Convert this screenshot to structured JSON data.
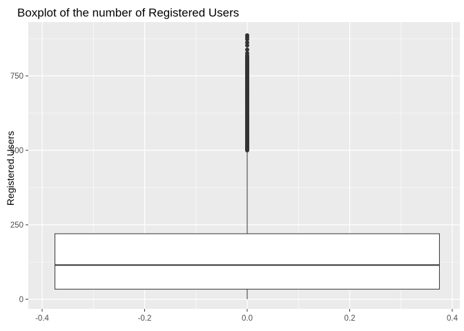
{
  "chart_data": {
    "type": "boxplot",
    "title": "Boxplot of the number of Registered Users",
    "xlabel": "",
    "ylabel": "Registered.Users",
    "xlim": [
      -0.4,
      0.4
    ],
    "ylim": [
      0,
      886
    ],
    "x_ticks": [
      -0.4,
      -0.2,
      0.0,
      0.2,
      0.4
    ],
    "x_tick_labels": [
      "-0.4",
      "-0.2",
      "0.0",
      "0.2",
      "0.4"
    ],
    "y_ticks": [
      0,
      250,
      500,
      750
    ],
    "y_tick_labels": [
      "0",
      "250",
      "500",
      "750"
    ],
    "grid": true,
    "box": {
      "x_center": 0.0,
      "x_left": -0.375,
      "x_right": 0.375,
      "q1": 34,
      "median": 115,
      "q3": 220,
      "whisker_low": 0,
      "whisker_high": 499
    },
    "outliers_range": [
      500,
      820
    ],
    "outliers_sparse": [
      826,
      838,
      852,
      862,
      873,
      880,
      886
    ],
    "colors": {
      "panel": "#ebebeb",
      "grid": "#ffffff",
      "box_fill": "#ffffff",
      "box_stroke": "#333333",
      "outlier": "#333333"
    }
  }
}
